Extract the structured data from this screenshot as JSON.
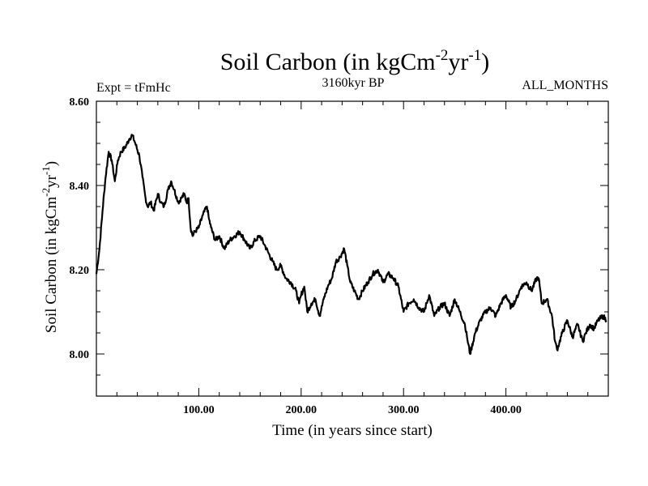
{
  "chart_data": {
    "type": "line",
    "title": "Soil Carbon (in kgCm",
    "title_exp1": "-2",
    "title_mid": "yr",
    "title_exp2": "-1",
    "title_end": ")",
    "subtitle_left": "Expt = tFmHc",
    "subtitle_center": "3160kyr BP",
    "subtitle_right": "ALL_MONTHS",
    "xlabel": "Time (in years since start)",
    "ylabel": "Soil Carbon (in kgCm",
    "ylabel_exp1": "-2",
    "ylabel_mid": "yr",
    "ylabel_exp2": "-1",
    "ylabel_end": ")",
    "xlim": [
      0,
      500
    ],
    "ylim": [
      7.9,
      8.6
    ],
    "x_ticks": [
      100,
      200,
      300,
      400
    ],
    "x_tick_labels": [
      "100.00",
      "200.00",
      "300.00",
      "400.00"
    ],
    "y_ticks": [
      8.0,
      8.2,
      8.4,
      8.6
    ],
    "y_tick_labels": [
      "8.00",
      "8.20",
      "8.40",
      "8.60"
    ],
    "series": [
      {
        "name": "Soil Carbon",
        "x": [
          0,
          3,
          6,
          9,
          12,
          15,
          18,
          21,
          24,
          28,
          32,
          35,
          38,
          42,
          45,
          48,
          50,
          53,
          56,
          60,
          63,
          66,
          70,
          73,
          76,
          80,
          83,
          86,
          88,
          90,
          92,
          94,
          96,
          100,
          104,
          108,
          110,
          112,
          116,
          120,
          125,
          130,
          135,
          140,
          145,
          150,
          155,
          160,
          164,
          168,
          172,
          176,
          180,
          185,
          190,
          195,
          198,
          200,
          203,
          206,
          210,
          214,
          218,
          222,
          226,
          230,
          234,
          238,
          242,
          245,
          248,
          252,
          256,
          260,
          265,
          270,
          275,
          280,
          285,
          290,
          295,
          300,
          305,
          310,
          315,
          320,
          325,
          330,
          335,
          340,
          345,
          350,
          355,
          360,
          362,
          365,
          370,
          375,
          380,
          385,
          390,
          395,
          400,
          405,
          410,
          415,
          420,
          425,
          430,
          432,
          435,
          440,
          445,
          448,
          450,
          455,
          460,
          465,
          470,
          475,
          478,
          482,
          486,
          490,
          495,
          498
        ],
        "values": [
          8.19,
          8.25,
          8.34,
          8.42,
          8.48,
          8.46,
          8.41,
          8.46,
          8.48,
          8.49,
          8.51,
          8.52,
          8.5,
          8.47,
          8.42,
          8.37,
          8.35,
          8.36,
          8.34,
          8.38,
          8.36,
          8.35,
          8.39,
          8.41,
          8.39,
          8.36,
          8.37,
          8.38,
          8.36,
          8.37,
          8.3,
          8.28,
          8.29,
          8.3,
          8.33,
          8.35,
          8.32,
          8.3,
          8.27,
          8.28,
          8.25,
          8.27,
          8.28,
          8.29,
          8.27,
          8.25,
          8.27,
          8.28,
          8.26,
          8.24,
          8.22,
          8.2,
          8.21,
          8.18,
          8.17,
          8.15,
          8.12,
          8.14,
          8.16,
          8.1,
          8.12,
          8.13,
          8.09,
          8.13,
          8.16,
          8.18,
          8.22,
          8.23,
          8.25,
          8.21,
          8.17,
          8.15,
          8.13,
          8.15,
          8.17,
          8.19,
          8.2,
          8.17,
          8.19,
          8.18,
          8.16,
          8.1,
          8.12,
          8.13,
          8.11,
          8.1,
          8.14,
          8.09,
          8.11,
          8.12,
          8.09,
          8.13,
          8.1,
          8.07,
          8.04,
          8.0,
          8.05,
          8.08,
          8.1,
          8.11,
          8.09,
          8.12,
          8.14,
          8.11,
          8.13,
          8.16,
          8.17,
          8.15,
          8.18,
          8.18,
          8.12,
          8.13,
          8.09,
          8.03,
          8.01,
          8.05,
          8.08,
          8.04,
          8.07,
          8.03,
          8.05,
          8.07,
          8.06,
          8.08,
          8.09,
          8.08
        ]
      }
    ]
  }
}
